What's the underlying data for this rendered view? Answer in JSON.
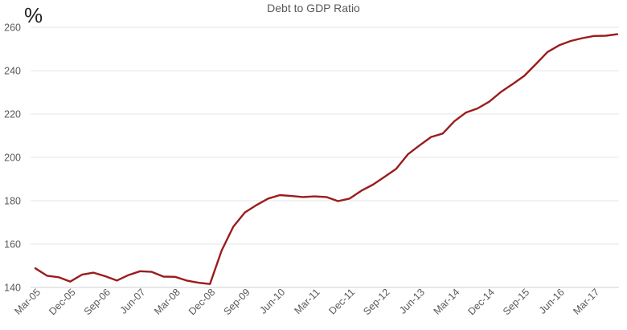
{
  "chart_data": {
    "type": "line",
    "title": "Debt to GDP Ratio",
    "ylabel": "%",
    "xlabel": "",
    "ylim": [
      140,
      260
    ],
    "yticks": [
      140,
      160,
      180,
      200,
      220,
      240,
      260
    ],
    "x_tick_labels": [
      "Mar-05",
      "Dec-05",
      "Sep-06",
      "Jun-07",
      "Mar-08",
      "Dec-08",
      "Sep-09",
      "Jun-10",
      "Mar-11",
      "Dec-11",
      "Sep-12",
      "Jun-13",
      "Mar-14",
      "Dec-14",
      "Sep-15",
      "Jun-16",
      "Mar-17"
    ],
    "grid": true,
    "line_color": "#9b1c1c",
    "series": [
      {
        "values": [
          148.8,
          145.4,
          144.7,
          142.7,
          145.9,
          146.8,
          145.2,
          143.2,
          145.7,
          147.5,
          147.2,
          145.0,
          144.9,
          143.2,
          142.2,
          141.6,
          157.0,
          168.0,
          174.6,
          178.0,
          181.0,
          182.6,
          182.2,
          181.7,
          182.0,
          181.7,
          179.8,
          181.0,
          184.6,
          187.4,
          191.0,
          194.7,
          201.4,
          205.5,
          209.4,
          211.0,
          216.7,
          220.7,
          222.6,
          225.7,
          230.2,
          233.8,
          237.6,
          243.0,
          248.6,
          251.7,
          253.7,
          255.0,
          256.0,
          256.1,
          256.8
        ]
      }
    ]
  }
}
